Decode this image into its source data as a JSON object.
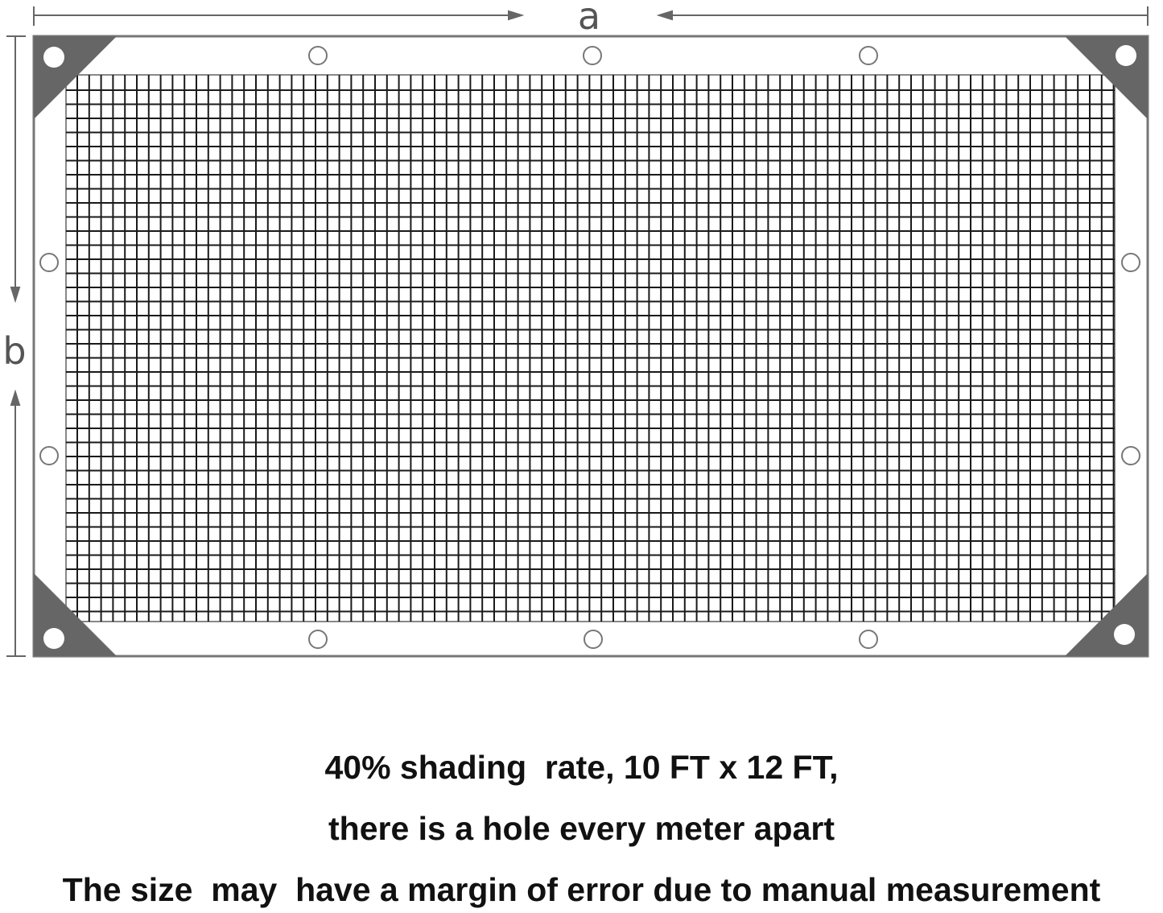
{
  "dimensions": {
    "width_label": "a",
    "height_label": "b"
  },
  "colors": {
    "frame": "#777777",
    "corner_patch": "#666666",
    "mesh": "#1a1a1a",
    "dimension": "#666666"
  },
  "grommets": {
    "top": 3,
    "bottom": 3,
    "left": 2,
    "right": 2,
    "corners": 4
  },
  "caption": {
    "line1": "40% shading  rate, 10 FT x 12 FT,",
    "line2": "there is a hole every meter apart",
    "line3": "The size  may  have a margin of error due to manual measurement"
  }
}
